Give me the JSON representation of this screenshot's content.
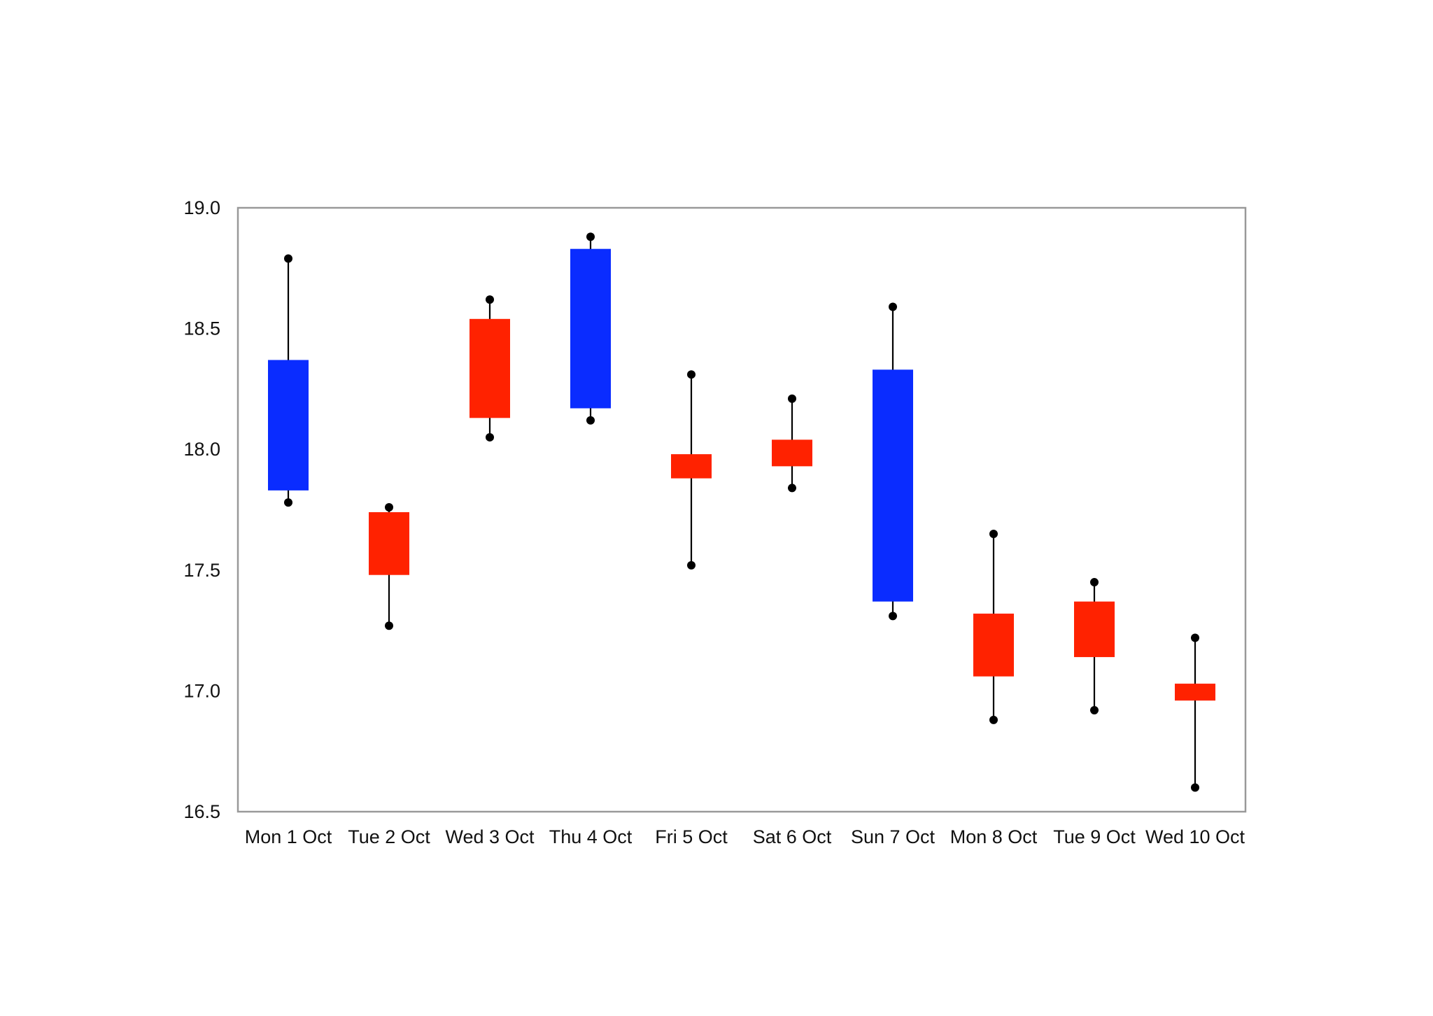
{
  "chart_data": {
    "type": "candlestick",
    "title": "",
    "xlabel": "",
    "ylabel": "",
    "ylim": [
      16.5,
      19.0
    ],
    "yticks": [
      "19.0",
      "18.5",
      "18.0",
      "17.5",
      "17.0",
      "16.5"
    ],
    "grid": false,
    "legend": "none",
    "colors": {
      "up": "#0a2cff",
      "down": "#ff2200",
      "axis": "#999999",
      "wick": "#000000"
    },
    "categories": [
      "Mon 1 Oct",
      "Tue 2 Oct",
      "Wed 3 Oct",
      "Thu 4 Oct",
      "Fri 5 Oct",
      "Sat 6 Oct",
      "Sun 7 Oct",
      "Mon 8 Oct",
      "Tue 9 Oct",
      "Wed 10 Oct"
    ],
    "candles": [
      {
        "open": 17.83,
        "close": 18.37,
        "high": 18.79,
        "low": 17.78
      },
      {
        "open": 17.74,
        "close": 17.48,
        "high": 17.76,
        "low": 17.27
      },
      {
        "open": 18.54,
        "close": 18.13,
        "high": 18.62,
        "low": 18.05
      },
      {
        "open": 18.17,
        "close": 18.83,
        "high": 18.88,
        "low": 18.12
      },
      {
        "open": 17.98,
        "close": 17.88,
        "high": 18.31,
        "low": 17.52
      },
      {
        "open": 18.04,
        "close": 17.93,
        "high": 18.21,
        "low": 17.84
      },
      {
        "open": 17.37,
        "close": 18.33,
        "high": 18.59,
        "low": 17.31
      },
      {
        "open": 17.32,
        "close": 17.06,
        "high": 17.65,
        "low": 16.88
      },
      {
        "open": 17.37,
        "close": 17.14,
        "high": 17.45,
        "low": 16.92
      },
      {
        "open": 17.03,
        "close": 16.96,
        "high": 17.22,
        "low": 16.6
      }
    ]
  }
}
